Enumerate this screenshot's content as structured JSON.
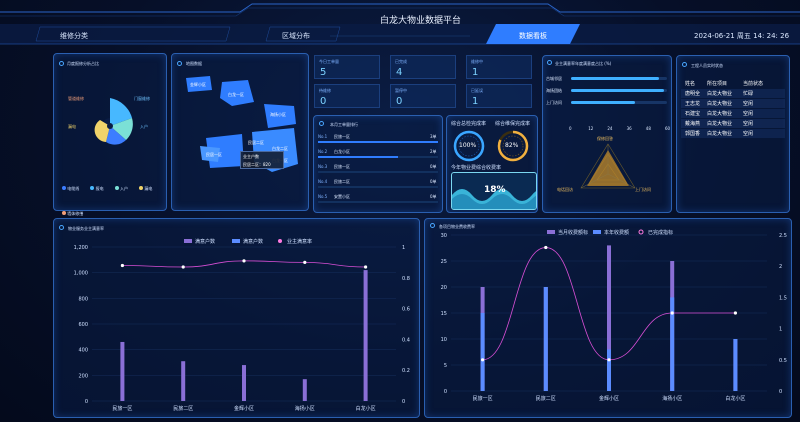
{
  "header": {
    "title": "白龙大物业数据平台",
    "tabs": [
      "维修分类",
      "区域分布",
      "数据看板"
    ],
    "active_tab": "数据看板",
    "datetime": "2024-06-21 周五 14: 24: 26"
  },
  "panel_repair": {
    "title": "月度报修分析占比",
    "labels": [
      "管道维修",
      "门窗维修",
      "漏电",
      "入户"
    ],
    "legend": [
      "电缆线",
      "报电",
      "入户",
      "漏电",
      "墙体修缮"
    ]
  },
  "panel_map": {
    "title": "地图数据",
    "areas": [
      "金辉小区",
      "白龙一区",
      "海扬小区",
      "民居一区",
      "民居二区",
      "白龙二区",
      "白龙一区"
    ],
    "tooltip": {
      "line1": "业主户数",
      "line2": "民居二区：820"
    }
  },
  "kpis": [
    {
      "label": "今日工单量",
      "value": "5"
    },
    {
      "label": "已完成",
      "value": "4"
    },
    {
      "label": "维修中",
      "value": "1"
    },
    {
      "label": "待维修",
      "value": "0"
    },
    {
      "label": "暂停中",
      "value": "0"
    },
    {
      "label": "已延误",
      "value": "1"
    }
  ],
  "ranking": {
    "title": "本月工单量排行",
    "items": [
      {
        "no": "No.1",
        "name": "民旅一区",
        "count": "3单",
        "fill": 1.0
      },
      {
        "no": "No.2",
        "name": "白龙小区",
        "count": "2单",
        "fill": 0.67
      },
      {
        "no": "No.3",
        "name": "民旅一区",
        "count": "0单",
        "fill": 0
      },
      {
        "no": "No.4",
        "name": "民旅二区",
        "count": "0单",
        "fill": 0
      },
      {
        "no": "No.5",
        "name": "安置小区",
        "count": "0单",
        "fill": 0
      }
    ]
  },
  "rates": {
    "completion_label": "综合总检完成率",
    "completion_value": "100%",
    "completion_fraction": 1.0,
    "repair_label": "综合维保完成率",
    "repair_value": "82%",
    "repair_fraction": 0.82,
    "collection_label": "今年物业费综合收费率",
    "collection_value": "18%"
  },
  "owner_bars": {
    "title": "业主满意率年度满意度占比 (%)",
    "items": [
      {
        "label": "古城邻居",
        "value": 55
      },
      {
        "label": "海扬团结",
        "value": 58
      },
      {
        "label": "上门访问",
        "value": 40
      }
    ],
    "ticks": [
      "0",
      "12",
      "24",
      "36",
      "48",
      "60"
    ],
    "radar_labels": [
      "保修回答",
      "电话回访",
      "上门访问"
    ]
  },
  "staff": {
    "title": "工程人员实时状态",
    "headers": [
      "姓名",
      "所在项目",
      "当前状态"
    ],
    "rows": [
      [
        "唐明全",
        "白龙大物业",
        "忙碌"
      ],
      [
        "王志龙",
        "白龙大物业",
        "空闲"
      ],
      [
        "石建宝",
        "白龙大物业",
        "空闲"
      ],
      [
        "戴海燕",
        "白龙大物业",
        "空闲"
      ],
      [
        "郭国香",
        "白龙大物业",
        "空闲"
      ]
    ]
  },
  "chart1": {
    "title": "物业服务业主满意率",
    "legend": [
      "满意户数",
      "满意户数",
      "业主满意率"
    ],
    "chart_data": {
      "type": "bar",
      "categories": [
        "民旅一区",
        "民旅二区",
        "金辉小区",
        "海扬小区",
        "白龙小区"
      ],
      "series": [
        {
          "name": "满意户数",
          "values": [
            460,
            310,
            280,
            170,
            1020
          ]
        },
        {
          "name": "业主满意率",
          "values": [
            0.88,
            0.87,
            0.91,
            0.9,
            0.87
          ]
        }
      ],
      "ylim": [
        0,
        1200
      ],
      "y2lim": [
        0,
        1
      ],
      "yticks": [
        "0",
        "200",
        "400",
        "600",
        "800",
        "1,000",
        "1,200"
      ],
      "y2ticks": [
        "0",
        "0.2",
        "0.4",
        "0.6",
        "0.8",
        "1"
      ]
    }
  },
  "chart2": {
    "title": "各项目物业费收费率",
    "legend": [
      "当月收费额标",
      "本年收费额",
      "已完成指标"
    ],
    "chart_data": {
      "type": "bar",
      "categories": [
        "民旅一区",
        "民旅二区",
        "金辉小区",
        "海扬小区",
        "白龙小区"
      ],
      "series": [
        {
          "name": "当月收费额标",
          "values": [
            20,
            20,
            28,
            25,
            10
          ]
        },
        {
          "name": "本年收费额",
          "values": [
            15,
            20,
            8,
            18,
            10
          ]
        },
        {
          "name": "已完成指标",
          "values": [
            0.5,
            2.3,
            0.5,
            1.25,
            1.25
          ]
        }
      ],
      "ylim": [
        0,
        30
      ],
      "y2lim": [
        0,
        2.5
      ],
      "yticks": [
        "0",
        "5",
        "10",
        "15",
        "20",
        "25",
        "30"
      ],
      "y2ticks": [
        "0",
        "0.5",
        "1",
        "1.5",
        "2",
        "2.5"
      ]
    }
  }
}
